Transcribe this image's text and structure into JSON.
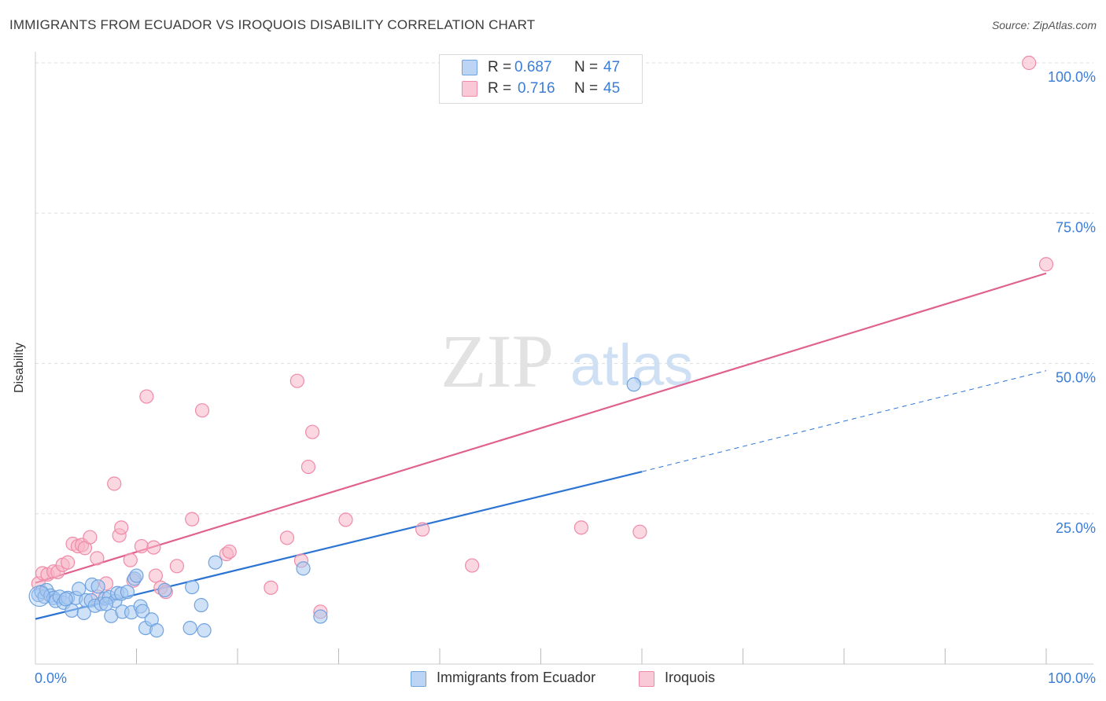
{
  "title": "IMMIGRANTS FROM ECUADOR VS IROQUOIS DISABILITY CORRELATION CHART",
  "source": "Source: ZipAtlas.com",
  "watermark": {
    "zip": "ZIP",
    "atlas": "atlas"
  },
  "legend": {
    "rows": [
      {
        "r_label": "R =",
        "r_value": "0.687",
        "n_label": "N =",
        "n_value": "47",
        "color": "#a8c8f0"
      },
      {
        "r_label": "R =",
        "r_value": "0.716",
        "n_label": "N =",
        "n_value": "45",
        "color": "#f7b6c8"
      }
    ]
  },
  "bottom_legend": [
    {
      "label": "Immigrants from Ecuador",
      "color": "#a8c8f0"
    },
    {
      "label": "Iroquois",
      "color": "#f7b6c8"
    }
  ],
  "chart_data": {
    "type": "scatter",
    "title": "IMMIGRANTS FROM ECUADOR VS IROQUOIS DISABILITY CORRELATION CHART",
    "xlabel": "",
    "ylabel": "Disability",
    "xlim": [
      0,
      100
    ],
    "ylim": [
      0,
      100
    ],
    "x_tick_labels": [
      {
        "value": 0,
        "label": "0.0%"
      },
      {
        "value": 100,
        "label": "100.0%"
      }
    ],
    "y_tick_labels": [
      {
        "value": 25,
        "label": "25.0%"
      },
      {
        "value": 50,
        "label": "50.0%"
      },
      {
        "value": 75,
        "label": "75.0%"
      },
      {
        "value": 100,
        "label": "100.0%"
      }
    ],
    "x_minor_ticks": [
      10,
      20,
      30,
      40,
      50,
      60,
      70,
      80,
      90,
      100
    ],
    "series": [
      {
        "name": "Immigrants from Ecuador",
        "color": "#6fa3e0",
        "fill": "#a8c8f0",
        "line_color": "#2c74d4",
        "trend": {
          "x0": 0,
          "y0": 7.5,
          "x1": 60,
          "y1": 32.0,
          "dash_to_x": 100,
          "dash_to_y": 48.8
        },
        "points": [
          [
            0.3,
            11.5
          ],
          [
            0.6,
            12
          ],
          [
            0.9,
            11.2
          ],
          [
            1.1,
            12.3
          ],
          [
            1.5,
            11.4
          ],
          [
            1.8,
            11.0
          ],
          [
            2.0,
            10.5
          ],
          [
            2.4,
            11.2
          ],
          [
            2.8,
            10.2
          ],
          [
            3.2,
            11.0
          ],
          [
            3.6,
            8.9
          ],
          [
            4.0,
            11.0
          ],
          [
            4.3,
            12.5
          ],
          [
            4.8,
            8.5
          ],
          [
            5.0,
            10.6
          ],
          [
            5.5,
            10.6
          ],
          [
            5.6,
            13.2
          ],
          [
            5.9,
            9.7
          ],
          [
            6.2,
            12.9
          ],
          [
            6.5,
            10.0
          ],
          [
            6.9,
            10.9
          ],
          [
            7.3,
            11.1
          ],
          [
            7.5,
            8.0
          ],
          [
            7.9,
            10.5
          ],
          [
            8.1,
            11.8
          ],
          [
            8.5,
            11.7
          ],
          [
            8.6,
            8.7
          ],
          [
            9.1,
            12.0
          ],
          [
            9.5,
            8.6
          ],
          [
            9.8,
            14.2
          ],
          [
            10.0,
            14.7
          ],
          [
            10.4,
            9.6
          ],
          [
            10.6,
            8.8
          ],
          [
            10.9,
            6.0
          ],
          [
            11.5,
            7.4
          ],
          [
            12.0,
            5.6
          ],
          [
            12.8,
            12.3
          ],
          [
            15.3,
            6.0
          ],
          [
            15.5,
            12.8
          ],
          [
            16.4,
            9.8
          ],
          [
            16.7,
            5.6
          ],
          [
            17.8,
            16.9
          ],
          [
            26.5,
            15.9
          ],
          [
            28.2,
            7.9
          ],
          [
            59.2,
            46.5
          ],
          [
            7.0,
            10.0
          ],
          [
            3.0,
            10.8
          ]
        ]
      },
      {
        "name": "Iroquois",
        "color": "#f08aa8",
        "fill": "#f7b6c8",
        "line_color": "#e0608e",
        "trend": {
          "x0": 0,
          "y0": 13.5,
          "x1": 100,
          "y1": 65.0
        },
        "points": [
          [
            0.3,
            13.4
          ],
          [
            0.7,
            15.1
          ],
          [
            1.2,
            14.9
          ],
          [
            1.8,
            15.4
          ],
          [
            2.2,
            15.3
          ],
          [
            2.7,
            16.5
          ],
          [
            3.2,
            16.9
          ],
          [
            3.7,
            20.0
          ],
          [
            4.2,
            19.6
          ],
          [
            4.6,
            19.8
          ],
          [
            4.9,
            19.3
          ],
          [
            5.4,
            21.1
          ],
          [
            6.1,
            17.6
          ],
          [
            6.2,
            11.2
          ],
          [
            7.0,
            13.4
          ],
          [
            7.8,
            30.0
          ],
          [
            8.3,
            21.4
          ],
          [
            8.5,
            22.7
          ],
          [
            9.4,
            17.3
          ],
          [
            9.7,
            13.9
          ],
          [
            10.5,
            19.6
          ],
          [
            11.0,
            44.5
          ],
          [
            11.7,
            19.4
          ],
          [
            11.9,
            14.7
          ],
          [
            12.4,
            12.7
          ],
          [
            12.9,
            12.0
          ],
          [
            14.0,
            16.3
          ],
          [
            15.5,
            24.1
          ],
          [
            16.5,
            42.2
          ],
          [
            18.9,
            18.3
          ],
          [
            19.2,
            18.7
          ],
          [
            23.3,
            12.7
          ],
          [
            24.9,
            21.0
          ],
          [
            25.9,
            47.1
          ],
          [
            26.3,
            17.2
          ],
          [
            27.0,
            32.8
          ],
          [
            27.4,
            38.6
          ],
          [
            28.2,
            8.7
          ],
          [
            30.7,
            24.0
          ],
          [
            38.3,
            22.4
          ],
          [
            43.2,
            16.4
          ],
          [
            54.0,
            22.7
          ],
          [
            59.8,
            22.0
          ],
          [
            98.3,
            100.0
          ],
          [
            100.0,
            66.5
          ]
        ]
      }
    ]
  }
}
